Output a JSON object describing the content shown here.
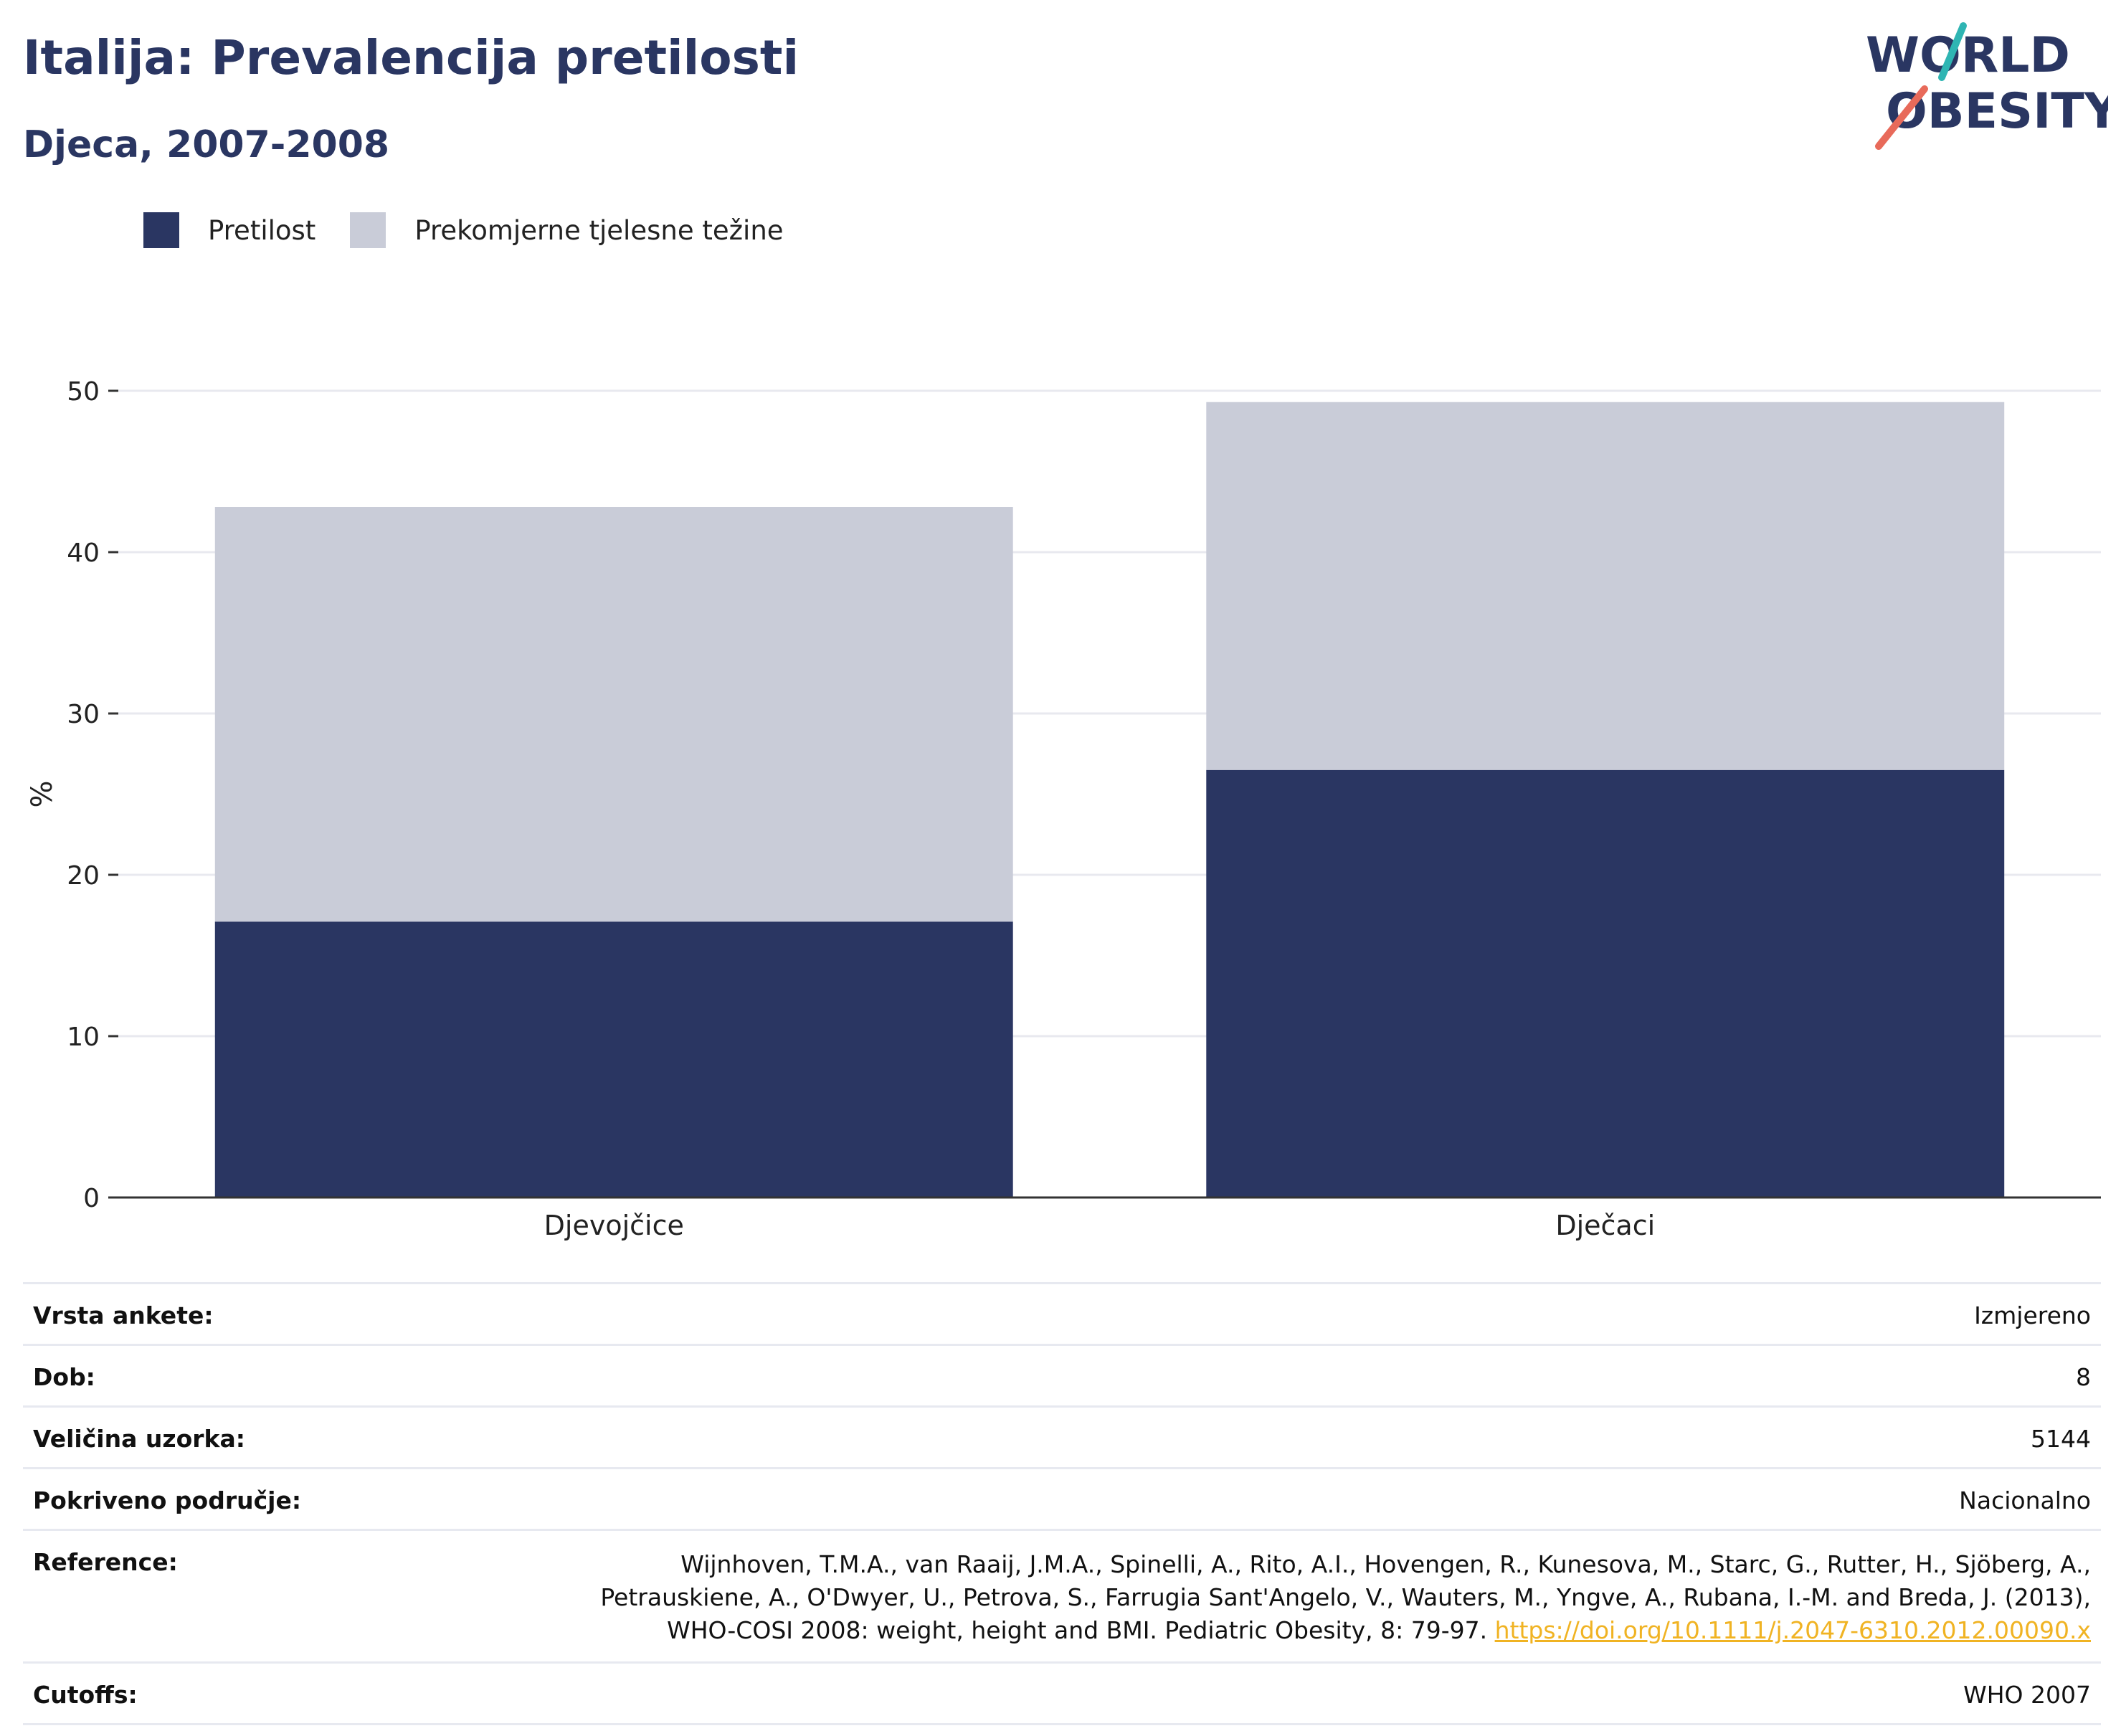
{
  "header": {
    "title": "Italija: Prevalencija pretilosti",
    "subtitle": "Djeca, 2007-2008"
  },
  "logo": {
    "line1": "WORLD",
    "line2": "OBESITY"
  },
  "colors": {
    "obesity": "#2a3662",
    "overweight": "#c9ccd8",
    "accent_teal": "#2fb5b3",
    "accent_red": "#e86a5a",
    "link": "#f0b323"
  },
  "chart_data": {
    "type": "bar",
    "stacked": true,
    "categories": [
      "Djevojčice",
      "Dječaci"
    ],
    "series": [
      {
        "name": "Pretilost",
        "values": [
          17.1,
          26.5
        ]
      },
      {
        "name": "Prekomjerne tjelesne težine",
        "values": [
          25.7,
          22.8
        ]
      }
    ],
    "ylabel": "%",
    "ylim": [
      0,
      50
    ],
    "yticks": [
      0,
      10,
      20,
      30,
      40,
      50
    ],
    "grid": true,
    "legend_position": "top-left"
  },
  "info": {
    "survey_type": {
      "label": "Vrsta ankete:",
      "value": "Izmjereno"
    },
    "age": {
      "label": "Dob:",
      "value": "8"
    },
    "sample_size": {
      "label": "Veličina uzorka:",
      "value": "5144"
    },
    "coverage": {
      "label": "Pokriveno područje:",
      "value": "Nacionalno"
    },
    "references": {
      "label": "Reference:",
      "text": "Wijnhoven, T.M.A., van Raaij, J.M.A., Spinelli, A., Rito, A.I., Hovengen, R., Kunesova, M., Starc, G., Rutter, H., Sjöberg, A., Petrauskiene, A., O'Dwyer, U., Petrova, S., Farrugia Sant'Angelo, V., Wauters, M., Yngve, A., Rubana, I.-M. and Breda, J. (2013), WHO-COSI 2008: weight, height and BMI. Pediatric Obesity, 8: 79-97.",
      "link": "https://doi.org/10.1111/j.2047-6310.2012.00090.x"
    },
    "cutoffs": {
      "label": "Cutoffs:",
      "value": "WHO 2007"
    }
  }
}
